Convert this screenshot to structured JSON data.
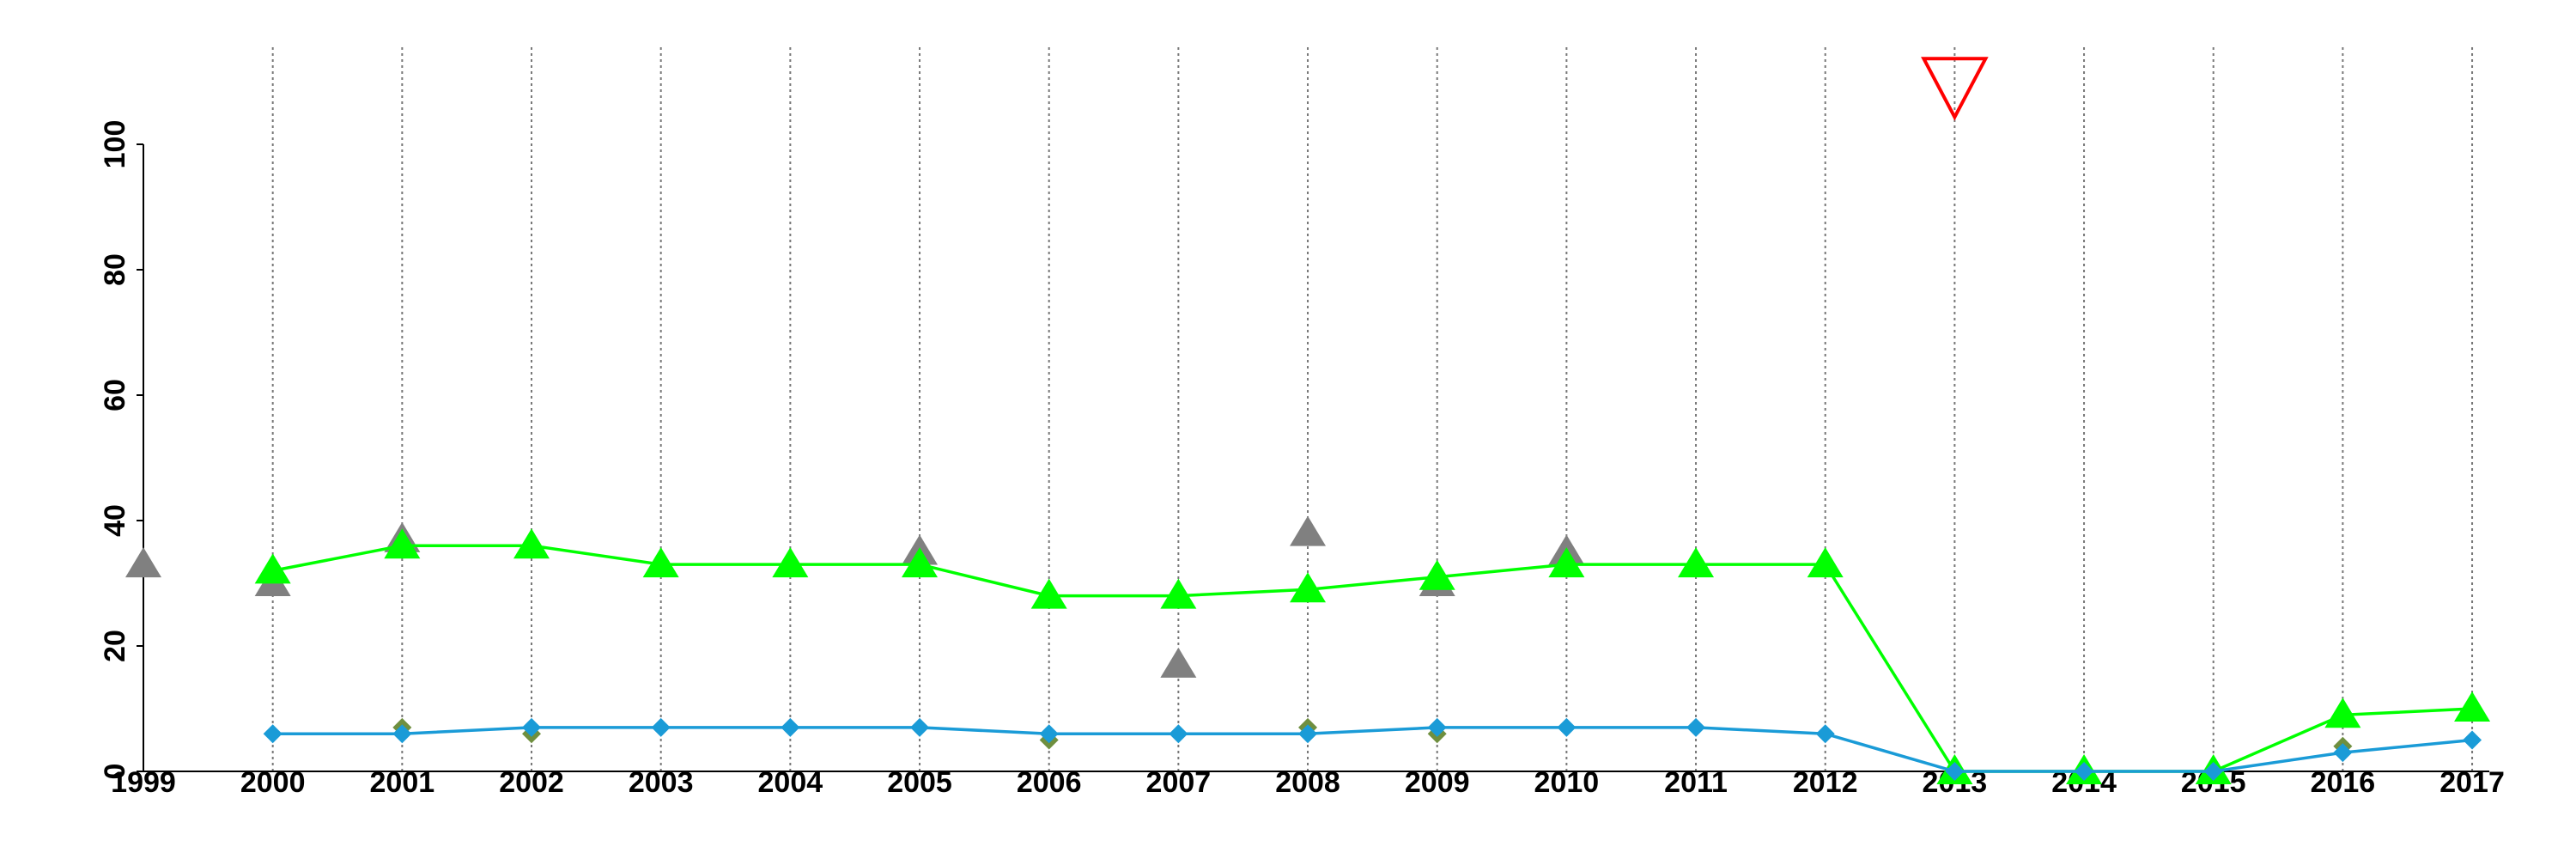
{
  "chart_data": {
    "type": "line",
    "title": "",
    "xlabel": "",
    "ylabel": "",
    "x": [
      "1999",
      "2000",
      "2001",
      "2002",
      "2003",
      "2004",
      "2005",
      "2006",
      "2007",
      "2008",
      "2009",
      "2010",
      "2011",
      "2012",
      "2013",
      "2014",
      "2015",
      "2016",
      "2017"
    ],
    "ylim": [
      0,
      100
    ],
    "yticks": [
      0,
      20,
      40,
      60,
      80,
      100
    ],
    "grid": "vertical dotted lines at each year",
    "legend": "none",
    "series": [
      {
        "marker": "triangle",
        "line": true,
        "color": "#00ff00",
        "values": [
          null,
          32,
          36,
          36,
          33,
          33,
          33,
          28,
          28,
          29,
          31,
          33,
          33,
          33,
          0,
          0,
          0,
          9,
          10
        ]
      },
      {
        "marker": "diamond",
        "line": true,
        "color": "#1a9bd7",
        "values": [
          null,
          6,
          6,
          7,
          7,
          7,
          7,
          6,
          6,
          6,
          7,
          7,
          7,
          6,
          0,
          0,
          0,
          3,
          5
        ]
      },
      {
        "marker": "triangle",
        "line": false,
        "color": "#808080",
        "values": [
          33,
          30,
          37,
          null,
          null,
          null,
          35,
          null,
          17,
          38,
          30,
          35,
          null,
          null,
          null,
          null,
          null,
          null,
          null
        ]
      },
      {
        "marker": "diamond",
        "line": false,
        "color": "#6f8f3f",
        "values": [
          null,
          null,
          7,
          6,
          null,
          null,
          null,
          5,
          null,
          7,
          6,
          null,
          null,
          null,
          null,
          null,
          null,
          4,
          null
        ]
      }
    ],
    "annotations": [
      {
        "type": "down-triangle-outline",
        "x": "2013",
        "y": 109,
        "color": "#ff0000"
      }
    ]
  }
}
